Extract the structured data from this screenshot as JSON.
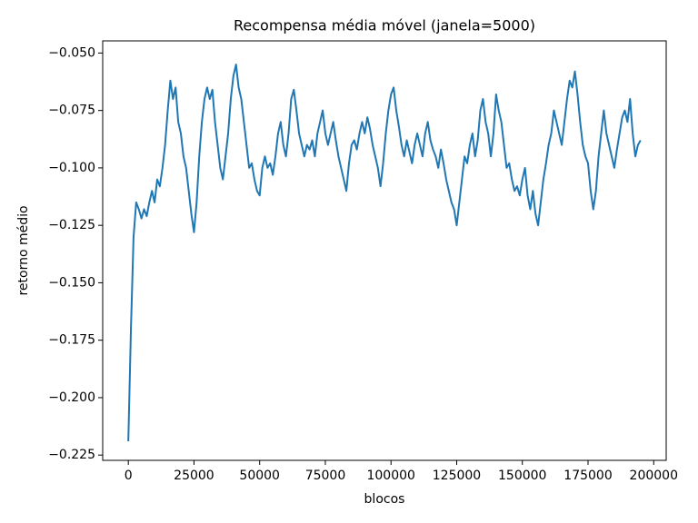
{
  "chart_data": {
    "type": "line",
    "title": "Recompensa média móvel (janela=5000)",
    "x_label": "blocos",
    "y_label": "retorno médio",
    "color": "#1f77b4",
    "x": [
      0,
      1000,
      2000,
      3000,
      4000,
      5000,
      6000,
      7000,
      8000,
      9000,
      10000,
      11000,
      12000,
      13000,
      14000,
      15000,
      16000,
      17000,
      18000,
      19000,
      20000,
      21000,
      22000,
      23000,
      24000,
      25000,
      26000,
      27000,
      28000,
      29000,
      30000,
      31000,
      32000,
      33000,
      34000,
      35000,
      36000,
      37000,
      38000,
      39000,
      40000,
      41000,
      42000,
      43000,
      44000,
      45000,
      46000,
      47000,
      48000,
      49000,
      50000,
      51000,
      52000,
      53000,
      54000,
      55000,
      56000,
      57000,
      58000,
      59000,
      60000,
      61000,
      62000,
      63000,
      64000,
      65000,
      66000,
      67000,
      68000,
      69000,
      70000,
      71000,
      72000,
      73000,
      74000,
      75000,
      76000,
      77000,
      78000,
      79000,
      80000,
      81000,
      82000,
      83000,
      84000,
      85000,
      86000,
      87000,
      88000,
      89000,
      90000,
      91000,
      92000,
      93000,
      94000,
      95000,
      96000,
      97000,
      98000,
      99000,
      100000,
      101000,
      102000,
      103000,
      104000,
      105000,
      106000,
      107000,
      108000,
      109000,
      110000,
      111000,
      112000,
      113000,
      114000,
      115000,
      116000,
      117000,
      118000,
      119000,
      120000,
      121000,
      122000,
      123000,
      124000,
      125000,
      126000,
      127000,
      128000,
      129000,
      130000,
      131000,
      132000,
      133000,
      134000,
      135000,
      136000,
      137000,
      138000,
      139000,
      140000,
      141000,
      142000,
      143000,
      144000,
      145000,
      146000,
      147000,
      148000,
      149000,
      150000,
      151000,
      152000,
      153000,
      154000,
      155000,
      156000,
      157000,
      158000,
      159000,
      160000,
      161000,
      162000,
      163000,
      164000,
      165000,
      166000,
      167000,
      168000,
      169000,
      170000,
      171000,
      172000,
      173000,
      174000,
      175000,
      176000,
      177000,
      178000,
      179000,
      180000,
      181000,
      182000,
      183000,
      184000,
      185000,
      186000,
      187000,
      188000,
      189000,
      190000,
      191000,
      192000,
      193000,
      194000,
      195000
    ],
    "values": [
      -0.219,
      -0.17,
      -0.13,
      -0.115,
      -0.118,
      -0.122,
      -0.118,
      -0.121,
      -0.115,
      -0.11,
      -0.115,
      -0.105,
      -0.108,
      -0.1,
      -0.09,
      -0.075,
      -0.062,
      -0.07,
      -0.065,
      -0.08,
      -0.085,
      -0.095,
      -0.1,
      -0.11,
      -0.12,
      -0.128,
      -0.115,
      -0.095,
      -0.08,
      -0.07,
      -0.065,
      -0.07,
      -0.066,
      -0.08,
      -0.09,
      -0.1,
      -0.105,
      -0.095,
      -0.085,
      -0.07,
      -0.06,
      -0.055,
      -0.065,
      -0.07,
      -0.08,
      -0.09,
      -0.1,
      -0.098,
      -0.105,
      -0.11,
      -0.112,
      -0.1,
      -0.095,
      -0.1,
      -0.098,
      -0.103,
      -0.095,
      -0.085,
      -0.08,
      -0.09,
      -0.095,
      -0.085,
      -0.07,
      -0.066,
      -0.075,
      -0.085,
      -0.09,
      -0.095,
      -0.09,
      -0.092,
      -0.088,
      -0.095,
      -0.085,
      -0.08,
      -0.075,
      -0.085,
      -0.09,
      -0.085,
      -0.08,
      -0.088,
      -0.095,
      -0.1,
      -0.105,
      -0.11,
      -0.098,
      -0.09,
      -0.088,
      -0.092,
      -0.085,
      -0.08,
      -0.085,
      -0.078,
      -0.083,
      -0.09,
      -0.095,
      -0.1,
      -0.108,
      -0.098,
      -0.085,
      -0.075,
      -0.068,
      -0.065,
      -0.075,
      -0.082,
      -0.09,
      -0.095,
      -0.088,
      -0.093,
      -0.098,
      -0.09,
      -0.085,
      -0.09,
      -0.095,
      -0.085,
      -0.08,
      -0.088,
      -0.092,
      -0.095,
      -0.1,
      -0.092,
      -0.098,
      -0.105,
      -0.11,
      -0.115,
      -0.118,
      -0.125,
      -0.115,
      -0.105,
      -0.095,
      -0.098,
      -0.09,
      -0.085,
      -0.095,
      -0.088,
      -0.075,
      -0.07,
      -0.08,
      -0.085,
      -0.095,
      -0.085,
      -0.068,
      -0.075,
      -0.08,
      -0.09,
      -0.1,
      -0.098,
      -0.105,
      -0.11,
      -0.108,
      -0.112,
      -0.105,
      -0.1,
      -0.112,
      -0.118,
      -0.11,
      -0.12,
      -0.125,
      -0.115,
      -0.105,
      -0.098,
      -0.09,
      -0.085,
      -0.075,
      -0.08,
      -0.085,
      -0.09,
      -0.08,
      -0.07,
      -0.062,
      -0.065,
      -0.058,
      -0.068,
      -0.08,
      -0.09,
      -0.095,
      -0.098,
      -0.11,
      -0.118,
      -0.11,
      -0.095,
      -0.085,
      -0.075,
      -0.085,
      -0.09,
      -0.095,
      -0.1,
      -0.092,
      -0.085,
      -0.078,
      -0.075,
      -0.08,
      -0.07,
      -0.085,
      -0.095,
      -0.09,
      -0.088
    ],
    "xlim": [
      -9750,
      204750
    ],
    "ylim": [
      -0.2273,
      -0.0447
    ],
    "xticks": [
      0,
      25000,
      50000,
      75000,
      100000,
      125000,
      150000,
      175000,
      200000
    ],
    "yticks": [
      {
        "value": -0.05,
        "label": "−0.050"
      },
      {
        "value": -0.075,
        "label": "−0.075"
      },
      {
        "value": -0.1,
        "label": "−0.100"
      },
      {
        "value": -0.125,
        "label": "−0.125"
      },
      {
        "value": -0.15,
        "label": "−0.150"
      },
      {
        "value": -0.175,
        "label": "−0.175"
      },
      {
        "value": -0.2,
        "label": "−0.200"
      },
      {
        "value": -0.225,
        "label": "−0.225"
      }
    ]
  }
}
